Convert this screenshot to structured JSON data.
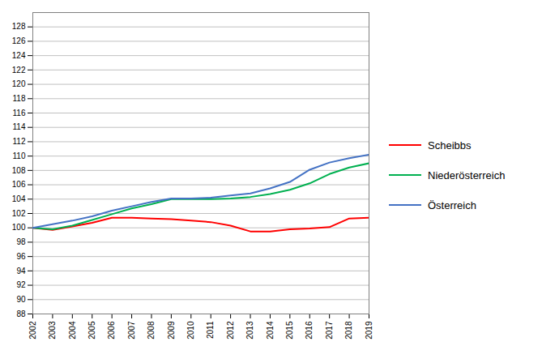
{
  "chart_data": {
    "type": "line",
    "x": [
      2002,
      2003,
      2004,
      2005,
      2006,
      2007,
      2008,
      2009,
      2010,
      2011,
      2012,
      2013,
      2014,
      2015,
      2016,
      2017,
      2018,
      2019
    ],
    "series": [
      {
        "name": "Scheibbs",
        "color": "#ff0000",
        "values": [
          100.0,
          99.7,
          100.2,
          100.7,
          101.4,
          101.4,
          101.3,
          101.2,
          101.0,
          100.8,
          100.3,
          99.5,
          99.5,
          99.8,
          99.9,
          100.1,
          101.3,
          101.4
        ]
      },
      {
        "name": "Niederösterreich",
        "color": "#00b050",
        "values": [
          100.0,
          99.8,
          100.3,
          101.1,
          101.9,
          102.7,
          103.3,
          104.0,
          104.0,
          104.0,
          104.1,
          104.3,
          104.7,
          105.3,
          106.2,
          107.5,
          108.4,
          109.0
        ]
      },
      {
        "name": "Österreich",
        "color": "#4472c4",
        "values": [
          100.0,
          100.5,
          101.0,
          101.6,
          102.4,
          103.0,
          103.6,
          104.1,
          104.1,
          104.2,
          104.5,
          104.8,
          105.5,
          106.4,
          108.1,
          109.1,
          109.7,
          110.2
        ]
      }
    ],
    "xlim": [
      2002,
      2019
    ],
    "xticks": [
      2002,
      2003,
      2004,
      2005,
      2006,
      2007,
      2008,
      2009,
      2010,
      2011,
      2012,
      2013,
      2014,
      2015,
      2016,
      2017,
      2018,
      2019
    ],
    "ylim": [
      88,
      130
    ],
    "yticks": [
      88,
      90,
      92,
      94,
      96,
      98,
      100,
      102,
      104,
      106,
      108,
      110,
      112,
      114,
      116,
      118,
      120,
      122,
      124,
      126,
      128
    ],
    "grid": true,
    "legend": "right"
  }
}
